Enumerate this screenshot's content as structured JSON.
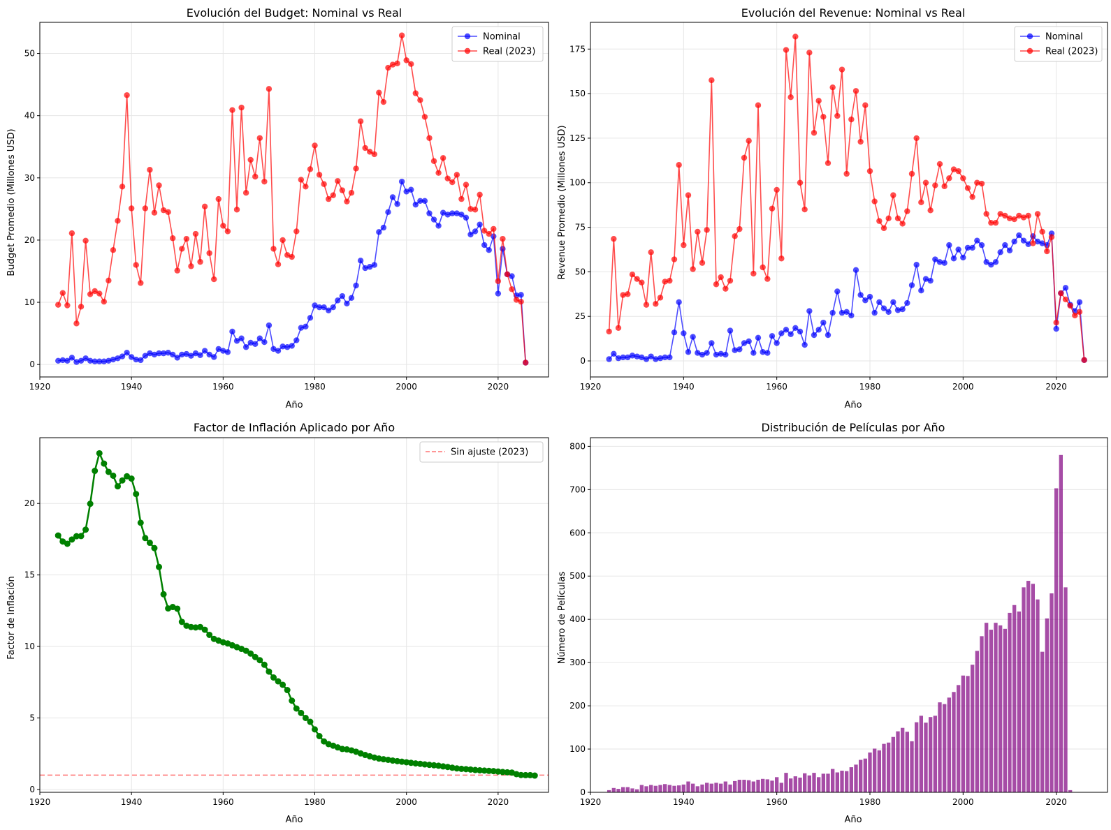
{
  "chart_data": [
    {
      "type": "line",
      "title": "Evolución del Budget: Nominal vs Real",
      "xlabel": "Año",
      "ylabel": "Budget Promedio (Millones USD)",
      "xlim": [
        1920,
        2031
      ],
      "ylim": [
        -2,
        55
      ],
      "xticks": [
        1920,
        1940,
        1960,
        1980,
        2000,
        2020
      ],
      "yticks": [
        0,
        10,
        20,
        30,
        40,
        50
      ],
      "grid": true,
      "legend_position": "top-right",
      "x_start": 1924,
      "series": [
        {
          "name": "Nominal",
          "color": "#0000ff",
          "values": [
            0.6,
            0.7,
            0.6,
            1.1,
            0.4,
            0.6,
            1.0,
            0.6,
            0.5,
            0.5,
            0.5,
            0.6,
            0.8,
            1.0,
            1.3,
            1.9,
            1.2,
            0.8,
            0.7,
            1.4,
            1.8,
            1.6,
            1.8,
            1.8,
            1.9,
            1.6,
            1.1,
            1.6,
            1.7,
            1.4,
            1.8,
            1.5,
            2.2,
            1.6,
            1.2,
            2.5,
            2.2,
            2.0,
            5.3,
            3.8,
            4.2,
            2.8,
            3.5,
            3.3,
            4.2,
            3.6,
            6.3,
            2.5,
            2.2,
            2.9,
            2.8,
            3.0,
            3.9,
            5.9,
            6.1,
            7.5,
            9.5,
            9.2,
            9.2,
            8.7,
            9.2,
            10.3,
            11.0,
            9.8,
            10.7,
            12.7,
            16.7,
            15.5,
            15.7,
            16.0,
            21.3,
            22.0,
            24.5,
            26.9,
            25.8,
            29.4,
            27.8,
            28.1,
            25.7,
            26.3,
            26.3,
            24.3,
            23.3,
            22.3,
            24.4,
            24.1,
            24.3,
            24.3,
            24.1,
            23.6,
            20.9,
            21.4,
            22.5,
            19.2,
            18.4,
            20.6,
            11.4,
            18.6,
            14.5,
            14.2,
            11.1,
            11.2,
            0.3
          ]
        },
        {
          "name": "Real (2023)",
          "color": "#ff0000",
          "values": [
            9.6,
            11.5,
            9.5,
            21.1,
            6.6,
            9.3,
            19.9,
            11.3,
            11.8,
            11.4,
            10.1,
            13.5,
            18.4,
            23.1,
            28.6,
            43.3,
            25.1,
            16.0,
            13.1,
            25.1,
            31.3,
            24.4,
            28.8,
            24.8,
            24.5,
            20.3,
            15.1,
            18.6,
            20.2,
            15.8,
            21.0,
            16.5,
            25.4,
            17.9,
            13.7,
            26.6,
            22.3,
            21.4,
            40.9,
            24.9,
            41.3,
            27.6,
            32.9,
            30.2,
            36.4,
            29.4,
            44.3,
            18.6,
            16.1,
            20.0,
            17.6,
            17.3,
            21.4,
            29.7,
            28.6,
            31.4,
            35.2,
            30.5,
            29.0,
            26.6,
            27.2,
            29.5,
            28.0,
            26.2,
            27.6,
            31.5,
            39.1,
            34.8,
            34.2,
            33.8,
            43.7,
            42.2,
            47.7,
            48.2,
            48.4,
            52.9,
            48.9,
            48.3,
            43.6,
            42.5,
            39.8,
            36.4,
            32.7,
            30.8,
            33.2,
            29.9,
            29.3,
            30.5,
            26.6,
            28.9,
            25.0,
            24.9,
            27.3,
            21.5,
            21.0,
            21.8,
            13.4,
            20.2,
            14.5,
            12.1,
            10.4,
            10.1,
            0.3
          ]
        }
      ]
    },
    {
      "type": "line",
      "title": "Evolución del Revenue: Nominal vs Real",
      "xlabel": "Año",
      "ylabel": "Revenue Promedio (Millones USD)",
      "xlim": [
        1920,
        2031
      ],
      "ylim": [
        -9,
        190
      ],
      "xticks": [
        1920,
        1940,
        1960,
        1980,
        2000,
        2020
      ],
      "yticks": [
        0,
        25,
        50,
        75,
        100,
        125,
        150,
        175
      ],
      "grid": true,
      "legend_position": "top-right",
      "x_start": 1924,
      "series": [
        {
          "name": "Nominal",
          "color": "#0000ff",
          "values": [
            1,
            4,
            1.5,
            2,
            2,
            3,
            2.5,
            2,
            1,
            2.5,
            1,
            1.5,
            2,
            2,
            16,
            33,
            15.5,
            5,
            13.5,
            4.5,
            3.5,
            4.5,
            10,
            3.5,
            4,
            3.5,
            17,
            6,
            6.5,
            10,
            11,
            4.5,
            13,
            5,
            4.5,
            14,
            10,
            15.5,
            17.5,
            15,
            18.5,
            16.5,
            9,
            28,
            14.5,
            17.5,
            21.5,
            14.5,
            27,
            39,
            27,
            27.5,
            25.5,
            51,
            37,
            34,
            36,
            27,
            33,
            29.5,
            27.5,
            33,
            28.5,
            29,
            32.5,
            42.5,
            54,
            39.5,
            46,
            45,
            57,
            55.5,
            55,
            65,
            57.5,
            62.5,
            58,
            63.5,
            63.5,
            67.5,
            65,
            55.5,
            54,
            55.5,
            61,
            65,
            62,
            67,
            70.5,
            67.5,
            65.5,
            70,
            67,
            66,
            65,
            71.5,
            18,
            38,
            41,
            31.5,
            28,
            33,
            0.5
          ]
        },
        {
          "name": "Real (2023)",
          "color": "#ff0000",
          "values": [
            16.5,
            68.5,
            18.5,
            37,
            37.5,
            48.5,
            46,
            44,
            31.5,
            61,
            32,
            35.5,
            44.5,
            45,
            57,
            110,
            65,
            93,
            51.5,
            72.5,
            55,
            73.5,
            157.5,
            43,
            47,
            40.5,
            45,
            70,
            74,
            114,
            123.5,
            49,
            143.5,
            52.5,
            46,
            85.5,
            96,
            57.5,
            174.5,
            148,
            182,
            100,
            85,
            173,
            128,
            146,
            137,
            111,
            153.5,
            137.5,
            163.5,
            105,
            135.5,
            151.5,
            123,
            143.5,
            106.5,
            89.5,
            78.5,
            74.5,
            80,
            93,
            80,
            77,
            84,
            105,
            125,
            89,
            100,
            84.5,
            98.5,
            110.5,
            98,
            102.5,
            107.5,
            106.5,
            102.5,
            97,
            92,
            100,
            99.5,
            82.5,
            77.5,
            77.5,
            82.5,
            81.5,
            80,
            79.5,
            81.5,
            80.5,
            81.5,
            66,
            82.5,
            72.5,
            61.5,
            69.5,
            21.5,
            38,
            34.5,
            31,
            25.5,
            27.5,
            0.5
          ]
        }
      ]
    },
    {
      "type": "line",
      "title": "Factor de Inflación Aplicado por Año",
      "xlabel": "Año",
      "ylabel": "Factor de Inflación",
      "xlim": [
        1920,
        2031
      ],
      "ylim": [
        -0.2,
        24.6
      ],
      "xticks": [
        1920,
        1940,
        1960,
        1980,
        2000,
        2020
      ],
      "yticks": [
        0,
        5,
        10,
        15,
        20
      ],
      "grid": true,
      "legend_position": "top-right",
      "x_start": 1924,
      "reference_line": {
        "name": "Sin ajuste (2023)",
        "y": 1,
        "color": "#ff0000"
      },
      "series": [
        {
          "name": "",
          "color": "#008000",
          "values": [
            17.76,
            17.34,
            17.18,
            17.48,
            17.71,
            17.72,
            18.17,
            19.98,
            22.28,
            23.51,
            22.79,
            22.21,
            21.94,
            21.2,
            21.61,
            21.9,
            21.74,
            20.66,
            18.65,
            17.58,
            17.25,
            16.88,
            15.56,
            13.65,
            12.66,
            12.76,
            12.64,
            11.72,
            11.45,
            11.36,
            11.33,
            11.36,
            11.17,
            10.81,
            10.53,
            10.41,
            10.29,
            10.21,
            10.08,
            9.95,
            9.83,
            9.7,
            9.5,
            9.26,
            9.04,
            8.72,
            8.24,
            7.83,
            7.56,
            7.32,
            6.95,
            6.21,
            5.66,
            5.35,
            5.0,
            4.73,
            4.2,
            3.73,
            3.36,
            3.17,
            3.06,
            2.94,
            2.83,
            2.8,
            2.73,
            2.64,
            2.52,
            2.41,
            2.32,
            2.23,
            2.16,
            2.11,
            2.07,
            2.02,
            1.98,
            1.94,
            1.9,
            1.86,
            1.82,
            1.79,
            1.75,
            1.72,
            1.69,
            1.66,
            1.61,
            1.57,
            1.52,
            1.47,
            1.44,
            1.42,
            1.39,
            1.36,
            1.34,
            1.32,
            1.3,
            1.28,
            1.25,
            1.22,
            1.2,
            1.18,
            1.07,
            1.01,
            1.0,
            1.0,
            0.97
          ]
        }
      ]
    },
    {
      "type": "bar",
      "title": "Distribución de Películas por Año",
      "xlabel": "Año",
      "ylabel": "Número de Películas",
      "xlim": [
        1920,
        2031
      ],
      "ylim": [
        0,
        820
      ],
      "xticks": [
        1920,
        1940,
        1960,
        1980,
        2000,
        2020
      ],
      "yticks": [
        0,
        100,
        200,
        300,
        400,
        500,
        600,
        700,
        800
      ],
      "grid": true,
      "color": "#800080",
      "x_start": 1924,
      "values": [
        5,
        10,
        8,
        12,
        12,
        9,
        7,
        17,
        14,
        17,
        15,
        17,
        19,
        17,
        15,
        16,
        18,
        25,
        20,
        14,
        18,
        22,
        20,
        22,
        20,
        25,
        18,
        26,
        29,
        29,
        28,
        25,
        29,
        31,
        30,
        27,
        35,
        22,
        45,
        32,
        37,
        34,
        44,
        39,
        45,
        35,
        43,
        43,
        54,
        46,
        50,
        49,
        58,
        64,
        75,
        78,
        92,
        101,
        97,
        112,
        115,
        128,
        141,
        149,
        140,
        118,
        162,
        177,
        161,
        174,
        177,
        208,
        204,
        219,
        232,
        248,
        270,
        269,
        295,
        327,
        361,
        392,
        376,
        392,
        386,
        378,
        415,
        433,
        418,
        474,
        489,
        482,
        446,
        325,
        402,
        460,
        703,
        780,
        474,
        5
      ]
    }
  ]
}
